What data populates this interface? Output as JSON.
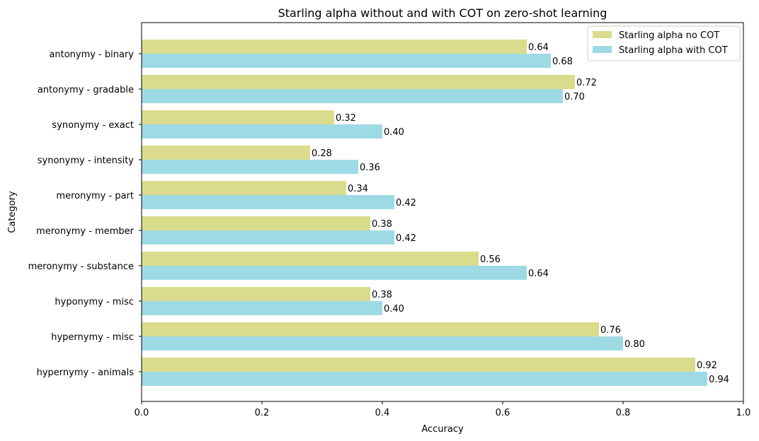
{
  "chart_data": {
    "type": "bar",
    "orientation": "horizontal",
    "title": "Starling alpha without and with COT on zero-shot learning",
    "xlabel": "Accuracy",
    "ylabel": "Category",
    "xlim": [
      0,
      1
    ],
    "xticks": [
      "0.0",
      "0.2",
      "0.4",
      "0.6",
      "0.8",
      "1.0"
    ],
    "grid": false,
    "legend_position": "top-right",
    "categories": [
      "antonymy - binary",
      "antonymy - gradable",
      "synonymy - exact",
      "synonymy - intensity",
      "meronymy - part",
      "meronymy - member",
      "meronymy - substance",
      "hyponymy - misc",
      "hypernymy - misc",
      "hypernymy - animals"
    ],
    "series": [
      {
        "name": "Starling alpha no COT",
        "color": "#dbdb8d",
        "values": [
          0.64,
          0.72,
          0.32,
          0.28,
          0.34,
          0.38,
          0.56,
          0.38,
          0.76,
          0.92
        ],
        "labels": [
          "0.64",
          "0.72",
          "0.32",
          "0.28",
          "0.34",
          "0.38",
          "0.56",
          "0.38",
          "0.76",
          "0.92"
        ]
      },
      {
        "name": "Starling alpha with COT",
        "color": "#9edae5",
        "values": [
          0.68,
          0.7,
          0.4,
          0.36,
          0.42,
          0.42,
          0.64,
          0.4,
          0.8,
          0.94
        ],
        "labels": [
          "0.68",
          "0.70",
          "0.40",
          "0.36",
          "0.42",
          "0.42",
          "0.64",
          "0.40",
          "0.80",
          "0.94"
        ]
      }
    ]
  }
}
